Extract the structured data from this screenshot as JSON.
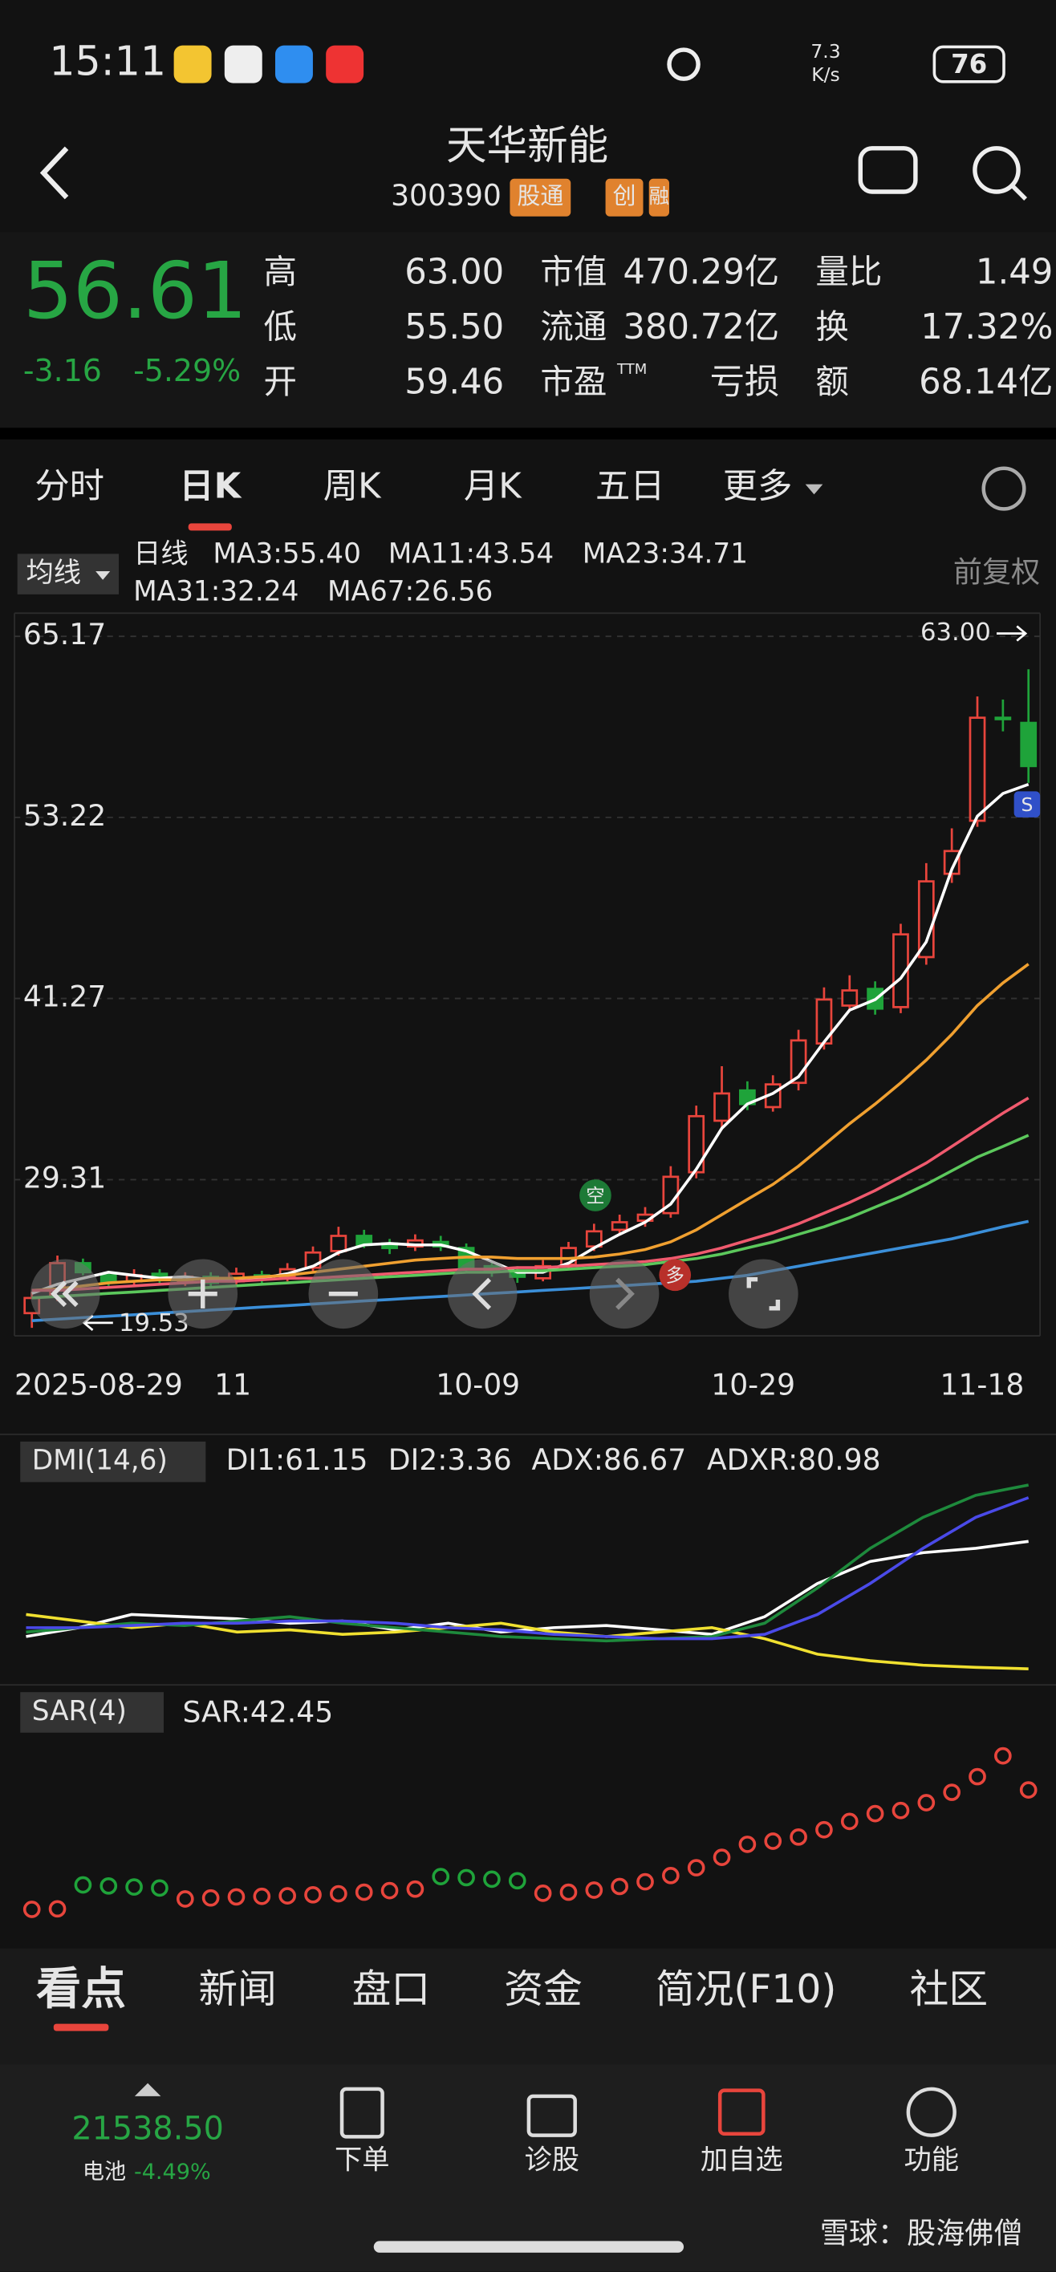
{
  "status_bar": {
    "time": "15:11",
    "speed_value": "7.3",
    "speed_unit": "K/s",
    "battery": "76"
  },
  "header": {
    "title": "天华新能",
    "code": "300390",
    "badges": [
      "股通",
      "创",
      "融"
    ]
  },
  "quote": {
    "price": "56.61",
    "change": "-3.16",
    "change_pct": "-5.29%",
    "stats": [
      [
        {
          "label": "高",
          "value": "63.00"
        },
        {
          "label": "市值",
          "value": "470.29亿"
        },
        {
          "label": "量比",
          "value": "1.49"
        }
      ],
      [
        {
          "label": "低",
          "value": "55.50"
        },
        {
          "label": "流通",
          "value": "380.72亿"
        },
        {
          "label": "换",
          "value": "17.32%"
        }
      ],
      [
        {
          "label": "开",
          "value": "59.46"
        },
        {
          "label": "市盈",
          "sup": "TTM",
          "value": "亏损"
        },
        {
          "label": "额",
          "value": "68.14亿"
        }
      ]
    ]
  },
  "tabs": [
    "分时",
    "日K",
    "周K",
    "月K",
    "五日",
    "更多"
  ],
  "kline_chart": {
    "type": "candlestick",
    "indicator": "均线",
    "period": "日线",
    "adjust": "前复权",
    "ylim": [
      19,
      66.7
    ],
    "yticks": [
      29.31,
      41.27,
      53.22,
      65.17
    ],
    "x_labels": [
      "2025-08-29",
      "11",
      "10-09",
      "10-29",
      "11-18"
    ],
    "open": [
      20.5,
      21.6,
      23.8,
      23.0,
      22.6,
      23.1,
      22.6,
      22.9,
      22.6,
      23.0,
      22.9,
      23.5,
      24.6,
      25.6,
      25.1,
      24.9,
      25.2,
      24.8,
      23.6,
      23.3,
      22.8,
      23.7,
      24.9,
      26.0,
      26.6,
      27.1,
      29.8,
      33.2,
      35.2,
      34.1,
      35.7,
      38.3,
      40.8,
      41.9,
      40.7,
      44.0,
      49.5,
      53.0,
      59.8,
      59.46
    ],
    "close": [
      21.5,
      23.8,
      23.2,
      22.6,
      23.0,
      22.7,
      22.9,
      22.5,
      23.1,
      22.8,
      23.4,
      24.5,
      25.6,
      25.0,
      24.8,
      25.3,
      24.9,
      23.5,
      23.2,
      22.9,
      23.6,
      24.8,
      25.9,
      26.5,
      27.0,
      29.5,
      33.5,
      35.0,
      34.3,
      35.6,
      38.5,
      41.2,
      41.8,
      40.6,
      45.5,
      49.0,
      51.0,
      59.8,
      59.77,
      56.61
    ],
    "high": [
      21.9,
      24.3,
      24.1,
      23.3,
      23.4,
      23.4,
      23.2,
      23.2,
      23.5,
      23.3,
      23.8,
      24.9,
      26.2,
      26.0,
      25.4,
      25.7,
      25.6,
      25.1,
      23.9,
      23.6,
      24.0,
      25.2,
      26.4,
      27.0,
      27.5,
      30.2,
      34.2,
      36.8,
      35.8,
      36.2,
      39.2,
      42.0,
      42.8,
      42.4,
      46.2,
      50.2,
      52.5,
      61.2,
      61.0,
      63.0
    ],
    "low": [
      19.53,
      21.3,
      23.0,
      22.3,
      22.3,
      22.4,
      22.3,
      22.2,
      22.4,
      22.5,
      22.6,
      23.2,
      24.3,
      24.8,
      24.4,
      24.6,
      24.6,
      23.2,
      22.9,
      22.5,
      22.6,
      23.4,
      24.6,
      25.7,
      26.2,
      26.8,
      29.4,
      32.6,
      33.9,
      33.8,
      35.2,
      37.9,
      40.5,
      40.2,
      40.3,
      43.5,
      48.9,
      52.6,
      58.9,
      55.5
    ],
    "up_color": "#e8453c",
    "down_color": "#1fa33a",
    "series": [
      {
        "name": "MA3:55.40",
        "color": "#ffffff",
        "values": [
          21.8,
          22.4,
          22.8,
          23.2,
          23.0,
          22.8,
          22.9,
          22.7,
          22.8,
          22.8,
          23.1,
          23.6,
          24.5,
          25.0,
          25.1,
          25.0,
          25.0,
          24.6,
          23.9,
          23.2,
          23.2,
          23.8,
          24.8,
          25.7,
          26.5,
          27.7,
          30.0,
          32.7,
          34.3,
          35.0,
          36.1,
          38.4,
          40.5,
          41.2,
          42.6,
          45.0,
          49.8,
          53.3,
          54.8,
          55.4
        ]
      },
      {
        "name": "MA11:43.54",
        "color": "#f0a030",
        "values": [
          22.0,
          22.1,
          22.3,
          22.5,
          22.6,
          22.7,
          22.7,
          22.8,
          22.8,
          22.9,
          23.0,
          23.2,
          23.4,
          23.6,
          23.8,
          24.0,
          24.1,
          24.2,
          24.2,
          24.1,
          24.1,
          24.1,
          24.2,
          24.4,
          24.7,
          25.2,
          26.0,
          27.0,
          28.0,
          29.0,
          30.2,
          31.6,
          33.0,
          34.3,
          35.7,
          37.2,
          38.9,
          40.8,
          42.3,
          43.54
        ]
      },
      {
        "name": "MA23:34.71",
        "color": "#f05a6e",
        "values": [
          22.0,
          22.0,
          22.1,
          22.2,
          22.3,
          22.4,
          22.5,
          22.6,
          22.6,
          22.7,
          22.8,
          22.8,
          22.9,
          23.0,
          23.1,
          23.2,
          23.3,
          23.4,
          23.4,
          23.5,
          23.5,
          23.6,
          23.7,
          23.8,
          23.9,
          24.1,
          24.4,
          24.8,
          25.3,
          25.8,
          26.4,
          27.1,
          27.8,
          28.6,
          29.5,
          30.4,
          31.5,
          32.6,
          33.7,
          34.71
        ]
      },
      {
        "name": "MA31:32.24",
        "color": "#5cc85c",
        "values": [
          21.5,
          21.6,
          21.7,
          21.8,
          21.9,
          22.0,
          22.1,
          22.2,
          22.3,
          22.4,
          22.5,
          22.6,
          22.7,
          22.8,
          22.9,
          23.0,
          23.1,
          23.2,
          23.2,
          23.3,
          23.3,
          23.4,
          23.5,
          23.6,
          23.7,
          23.9,
          24.1,
          24.4,
          24.8,
          25.2,
          25.7,
          26.2,
          26.8,
          27.5,
          28.2,
          29.0,
          29.9,
          30.8,
          31.5,
          32.24
        ]
      },
      {
        "name": "MA67:26.56",
        "color": "#3b8fd9",
        "values": [
          20.0,
          20.1,
          20.2,
          20.3,
          20.4,
          20.5,
          20.6,
          20.7,
          20.8,
          20.9,
          21.0,
          21.1,
          21.2,
          21.3,
          21.4,
          21.5,
          21.6,
          21.7,
          21.8,
          21.9,
          22.0,
          22.1,
          22.2,
          22.3,
          22.4,
          22.5,
          22.6,
          22.8,
          23.0,
          23.3,
          23.6,
          23.9,
          24.2,
          24.5,
          24.8,
          25.1,
          25.4,
          25.8,
          26.2,
          26.56
        ]
      }
    ],
    "annotations": {
      "high": "63.00",
      "low": "19.53",
      "signal": "S",
      "short": "空",
      "long": "多"
    }
  },
  "dmi_chart": {
    "type": "line",
    "indicator": "DMI(14,6)",
    "series": [
      {
        "name": "DI1:61.15",
        "color": "#ffffff",
        "values": [
          18,
          22,
          28,
          27,
          26,
          24,
          25,
          21,
          24,
          20,
          22,
          23,
          21,
          19,
          27,
          42,
          52,
          56,
          58,
          61.15
        ]
      },
      {
        "name": "DI2:3.36",
        "color": "#f0e030",
        "values": [
          28,
          25,
          22,
          24,
          20,
          21,
          19,
          20,
          22,
          24,
          20,
          18,
          20,
          22,
          17,
          10,
          7,
          5,
          4,
          3.36
        ]
      },
      {
        "name": "ADX:86.67",
        "color": "#1e8a3c",
        "values": [
          20,
          22,
          24,
          23,
          25,
          27,
          24,
          22,
          20,
          18,
          17,
          16,
          17,
          18,
          24,
          40,
          58,
          72,
          82,
          86.67
        ]
      },
      {
        "name": "ADXR:80.98",
        "color": "#4a4ae8",
        "values": [
          22,
          22,
          23,
          24,
          24,
          25,
          25,
          24,
          22,
          21,
          19,
          18,
          17,
          17,
          19,
          28,
          42,
          58,
          72,
          80.98
        ]
      }
    ]
  },
  "sar_chart": {
    "type": "scatter",
    "indicator": "SAR(4)",
    "label": "SAR:42.45",
    "up_color": "#e8453c",
    "down_color": "#1fa33a",
    "values": [
      19.5,
      19.6,
      24.2,
      24.0,
      23.8,
      23.6,
      21.5,
      21.7,
      21.9,
      22.0,
      22.1,
      22.3,
      22.5,
      22.8,
      23.1,
      23.4,
      25.8,
      25.6,
      25.3,
      25.0,
      22.6,
      22.8,
      23.2,
      23.9,
      24.8,
      26.0,
      27.5,
      29.5,
      32.0,
      32.6,
      33.4,
      34.8,
      36.4,
      37.9,
      38.5,
      40.0,
      42.0,
      45.0,
      49.0,
      42.45
    ]
  },
  "bottom_tabs": [
    "看点",
    "新闻",
    "盘口",
    "资金",
    "简况(F10)",
    "社区"
  ],
  "bottom_nav": {
    "index": "21538.50",
    "index_name": "电池",
    "index_change": "-4.49%",
    "items": [
      "下单",
      "诊股",
      "加自选",
      "功能"
    ]
  },
  "watermark": "雪球：股海佛僧"
}
